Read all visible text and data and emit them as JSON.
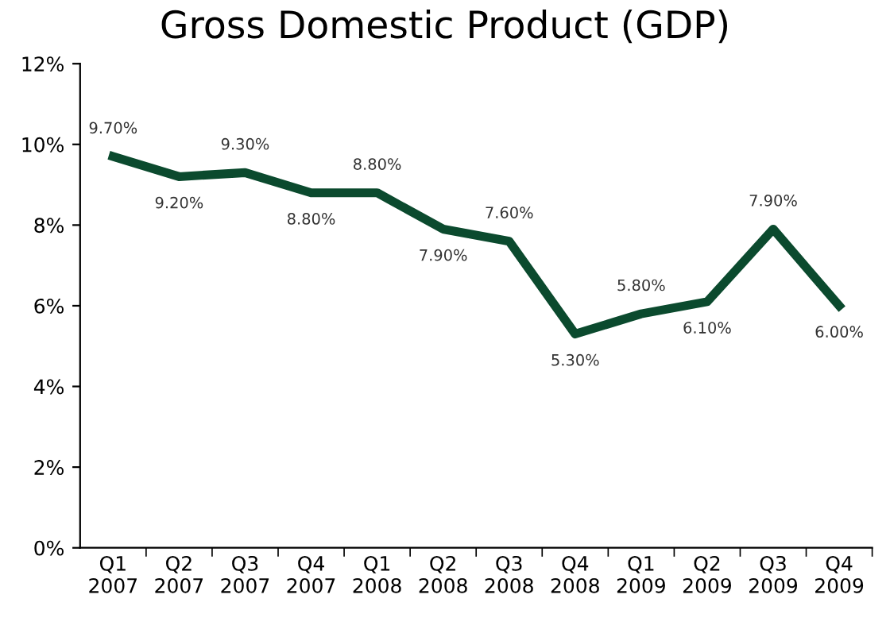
{
  "chart_data": {
    "type": "line",
    "title": "Gross Domestic Product (GDP)",
    "categories": [
      "Q1\n2007",
      "Q2\n2007",
      "Q3\n2007",
      "Q4\n2007",
      "Q1\n2008",
      "Q2\n2008",
      "Q3\n2008",
      "Q4\n2008",
      "Q1\n2009",
      "Q2\n2009",
      "Q3\n2009",
      "Q4\n2009"
    ],
    "series": [
      {
        "color": "#0b4a2e",
        "values": [
          9.7,
          9.2,
          9.3,
          8.8,
          8.8,
          7.9,
          7.6,
          5.3,
          5.8,
          6.1,
          7.9,
          6.0
        ],
        "value_labels": [
          "9.70%",
          "9.20%",
          "9.30%",
          "8.80%",
          "8.80%",
          "7.90%",
          "7.60%",
          "5.30%",
          "5.80%",
          "6.10%",
          "7.90%",
          "6.00%"
        ]
      }
    ],
    "ylim": [
      0,
      12
    ],
    "yticks": [
      {
        "value": 0,
        "label": "0%"
      },
      {
        "value": 2,
        "label": "2%"
      },
      {
        "value": 4,
        "label": "4%"
      },
      {
        "value": 6,
        "label": "6%"
      },
      {
        "value": 8,
        "label": "8%"
      },
      {
        "value": 10,
        "label": "10%"
      },
      {
        "value": 12,
        "label": "12%"
      }
    ],
    "grid": false,
    "legend": false,
    "marker": "none",
    "line_style": "solid"
  }
}
